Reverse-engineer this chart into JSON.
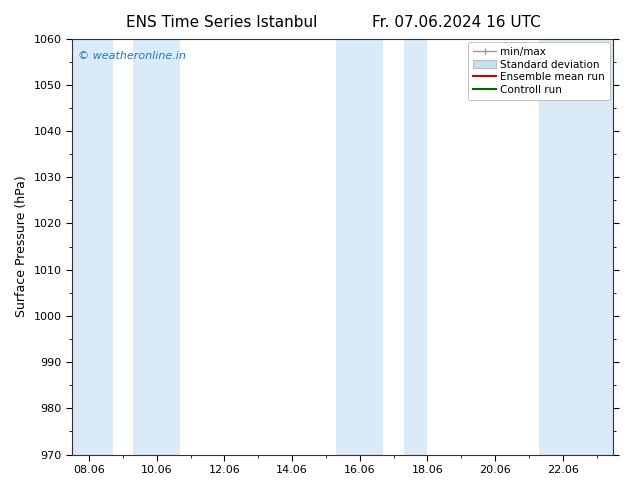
{
  "title1": "ENS Time Series Istanbul",
  "title2": "Fr. 07.06.2024 16 UTC",
  "ylabel": "Surface Pressure (hPa)",
  "ylim": [
    970,
    1060
  ],
  "yticks": [
    970,
    980,
    990,
    1000,
    1010,
    1020,
    1030,
    1040,
    1050,
    1060
  ],
  "xtick_labels": [
    "08.06",
    "10.06",
    "12.06",
    "14.06",
    "16.06",
    "18.06",
    "20.06",
    "22.06"
  ],
  "xtick_positions": [
    0,
    2,
    4,
    6,
    8,
    10,
    12,
    14
  ],
  "xlim": [
    -0.5,
    15.5
  ],
  "watermark": "© weatheronline.in",
  "watermark_color": "#1a7ad4",
  "bg_color": "#ffffff",
  "plot_bg_color": "#ffffff",
  "shaded_regions": [
    {
      "x_start": -0.5,
      "x_end": 0.7,
      "color": "#daeaf7"
    },
    {
      "x_start": 1.3,
      "x_end": 2.7,
      "color": "#daeaf7"
    },
    {
      "x_start": 7.3,
      "x_end": 8.7,
      "color": "#daeaf7"
    },
    {
      "x_start": 9.3,
      "x_end": 10.0,
      "color": "#daeaf7"
    },
    {
      "x_start": 13.3,
      "x_end": 15.5,
      "color": "#daeaf7"
    }
  ],
  "legend_entries": [
    {
      "label": "min/max",
      "color": "#aaaaaa",
      "type": "errorbar"
    },
    {
      "label": "Standard deviation",
      "color": "#c8dff0",
      "type": "bar"
    },
    {
      "label": "Ensemble mean run",
      "color": "#cc0000",
      "type": "line"
    },
    {
      "label": "Controll run",
      "color": "#006600",
      "type": "line"
    }
  ],
  "title_fontsize": 11,
  "tick_fontsize": 8,
  "ylabel_fontsize": 9,
  "legend_fontsize": 7.5
}
